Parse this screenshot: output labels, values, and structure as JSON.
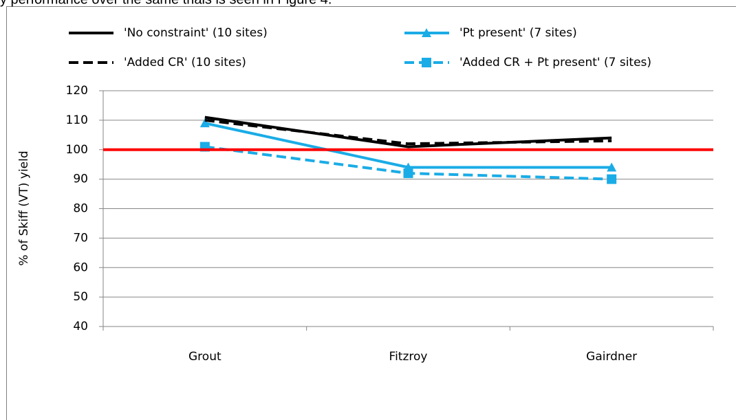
{
  "page_text": "y performance over the same trials is seen in Figure 4.",
  "chart_data": {
    "type": "line",
    "y_label": "% of Skiff (VT) yield",
    "categories": [
      "Grout",
      "Fitzroy",
      "Gairdner"
    ],
    "series": [
      {
        "name": "'No constraint' (10 sites)",
        "color": "#000000",
        "dash": false,
        "marker": null,
        "values": [
          111,
          101,
          104
        ]
      },
      {
        "name": "'Pt present' (7 sites)",
        "color": "#1aace6",
        "dash": false,
        "marker": "triangle",
        "values": [
          109,
          94,
          94
        ]
      },
      {
        "name": "'Added CR' (10 sites)",
        "color": "#000000",
        "dash": true,
        "marker": null,
        "values": [
          110,
          102,
          103
        ]
      },
      {
        "name": "'Added CR + Pt present' (7 sites)",
        "color": "#1aace6",
        "dash": true,
        "marker": "square",
        "values": [
          101,
          92,
          90
        ]
      }
    ],
    "reference_line": {
      "value": 100,
      "color": "#ff0000"
    },
    "ylim": [
      40,
      120
    ],
    "yticks": [
      40,
      50,
      60,
      70,
      80,
      90,
      100,
      110,
      120
    ],
    "grid": true
  }
}
